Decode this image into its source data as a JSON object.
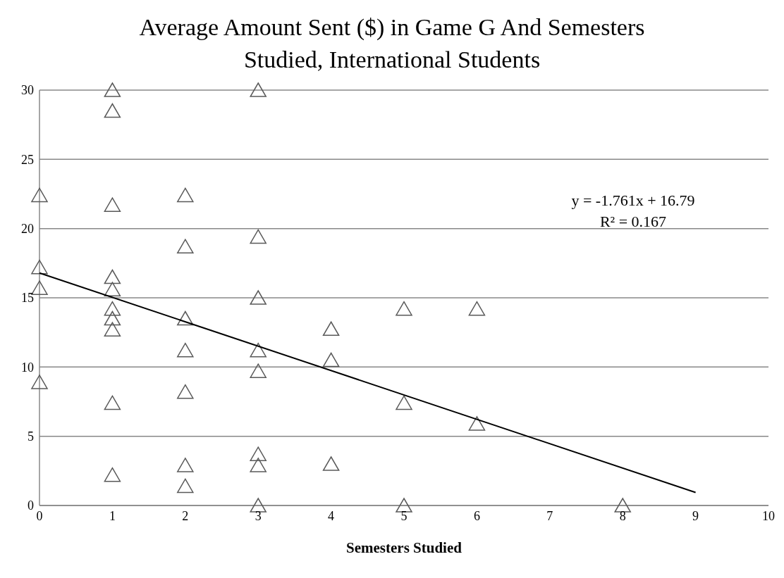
{
  "chart_data": {
    "type": "scatter",
    "title": "Average Amount Sent ($) in Game G And Semesters Studied, International Students",
    "xlabel": "Semesters Studied",
    "x": [
      0,
      0,
      0,
      0,
      1,
      1,
      1,
      1,
      1,
      1,
      1,
      1,
      1,
      1,
      2,
      2,
      2,
      2,
      2,
      2,
      2,
      3,
      3,
      3,
      3,
      3,
      3,
      3,
      3,
      4,
      4,
      4,
      5,
      5,
      5,
      6,
      6,
      8
    ],
    "series": [
      {
        "color": "#595959",
        "marker": "triangle",
        "values": [
          22.4,
          17.2,
          15.7,
          8.9,
          30,
          28.5,
          21.7,
          16.5,
          15.6,
          14.2,
          13.5,
          12.7,
          7.4,
          2.2,
          22.4,
          18.7,
          13.5,
          11.2,
          8.2,
          2.9,
          1.4,
          30,
          19.4,
          15,
          11.2,
          9.7,
          3.7,
          2.9,
          0,
          12.75,
          10.5,
          3,
          14.2,
          7.4,
          0,
          14.2,
          5.9,
          0
        ]
      },
      {
        "type": "line",
        "x": [
          0,
          9
        ],
        "values": [
          16.79,
          0.94
        ],
        "color": "#000000",
        "marker": "none"
      }
    ],
    "annotations": [
      "y = -1.761x + 16.79",
      "R² = 0.167"
    ],
    "xlim": [
      0,
      10
    ],
    "xticks": [
      0,
      1,
      2,
      3,
      4,
      5,
      6,
      7,
      8,
      9,
      10
    ],
    "ylim": [
      0,
      30
    ],
    "yticks": [
      0,
      5,
      10,
      15,
      20,
      25,
      30
    ],
    "grid": "y"
  }
}
